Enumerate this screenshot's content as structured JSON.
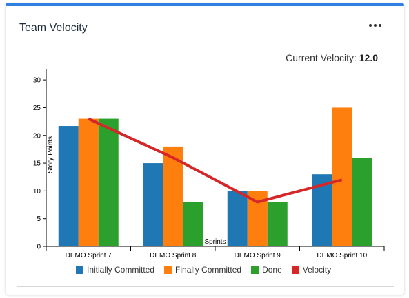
{
  "widget": {
    "title": "Team Velocity",
    "menu_icon": "more-horizontal-icon",
    "velocity_label": "Current Velocity:",
    "velocity_value": "12.0"
  },
  "colors": {
    "accent": "#2f80e0",
    "initially_committed": "#1f77b4",
    "finally_committed": "#ff7f0e",
    "done": "#2ca02c",
    "velocity": "#d62728"
  },
  "chart_data": {
    "type": "bar",
    "categories": [
      "DEMO Sprint 7",
      "DEMO Sprint 8",
      "DEMO Sprint 9",
      "DEMO Sprint 10"
    ],
    "series": [
      {
        "name": "Initially Committed",
        "type": "bar",
        "values": [
          21.7,
          15,
          10,
          13
        ]
      },
      {
        "name": "Finally Committed",
        "type": "bar",
        "values": [
          23,
          18,
          10,
          25
        ]
      },
      {
        "name": "Done",
        "type": "bar",
        "values": [
          23,
          8,
          8,
          16
        ]
      },
      {
        "name": "Velocity",
        "type": "line",
        "values": [
          23,
          16,
          8,
          12
        ]
      }
    ],
    "xlabel": "Sprints",
    "ylabel": "Story Points",
    "ylim": [
      0,
      32
    ],
    "yticks": [
      0,
      5,
      10,
      15,
      20,
      25,
      30
    ],
    "legend_position": "bottom",
    "grid": false
  }
}
